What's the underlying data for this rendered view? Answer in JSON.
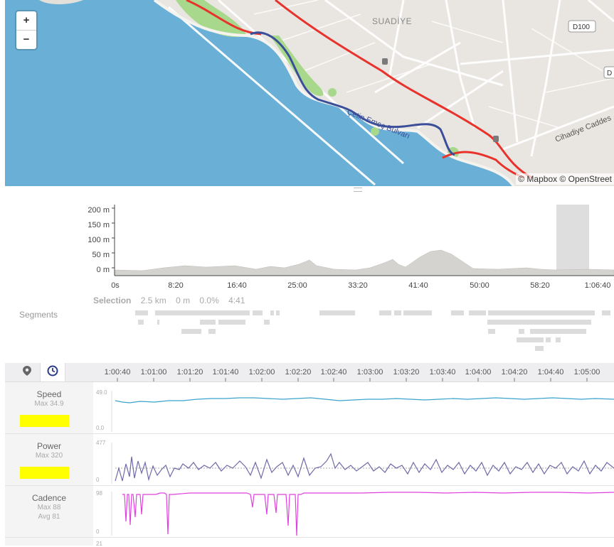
{
  "map": {
    "zoom_in": "+",
    "zoom_out": "−",
    "labels": {
      "district": "SUADİYE",
      "road_d100": "D100",
      "road_d": "D",
      "boulevard": "Çetin Emeç Bulvarı",
      "street": "Cihadiye Caddes"
    },
    "attribution": "© Mapbox © OpenStreet",
    "colors": {
      "sea": "#6aafd6",
      "route_main": "#e8322c",
      "route_alt": "#3b4e99"
    }
  },
  "elevation": {
    "y_ticks": [
      "200 m",
      "150 m",
      "100 m",
      "50 m",
      "0 m"
    ],
    "x_ticks": [
      "0s",
      "8:20",
      "16:40",
      "25:00",
      "33:20",
      "41:40",
      "50:00",
      "58:20",
      "1:06:40"
    ],
    "selection": {
      "title": "Selection",
      "distance": "2.5 km",
      "elevation": "0 m",
      "grade": "0.0%",
      "time": "4:41"
    }
  },
  "segments": {
    "label": "Segments"
  },
  "timeline": {
    "map_icon": "map-pin-icon",
    "time_icon": "clock-icon",
    "ticks": [
      "1:00:40",
      "1:01:00",
      "1:01:20",
      "1:01:40",
      "1:02:00",
      "1:02:20",
      "1:02:40",
      "1:03:00",
      "1:03:20",
      "1:03:40",
      "1:04:00",
      "1:04:20",
      "1:04:40",
      "1:05:00"
    ]
  },
  "streams": {
    "speed": {
      "name": "Speed",
      "max": "Max 34.9",
      "axis_max": "49.0",
      "axis_min": "0.0",
      "color": "#3ba3cc"
    },
    "power": {
      "name": "Power",
      "max": "Max 320",
      "axis_max": "477",
      "axis_min": "0",
      "color": "#6f6aa8"
    },
    "cadence": {
      "name": "Cadence",
      "max": "Max 88",
      "avg": "Avg 81",
      "axis_max": "98",
      "axis_min": "0",
      "color": "#e040e0"
    },
    "next": {
      "axis_max": "21"
    }
  }
}
